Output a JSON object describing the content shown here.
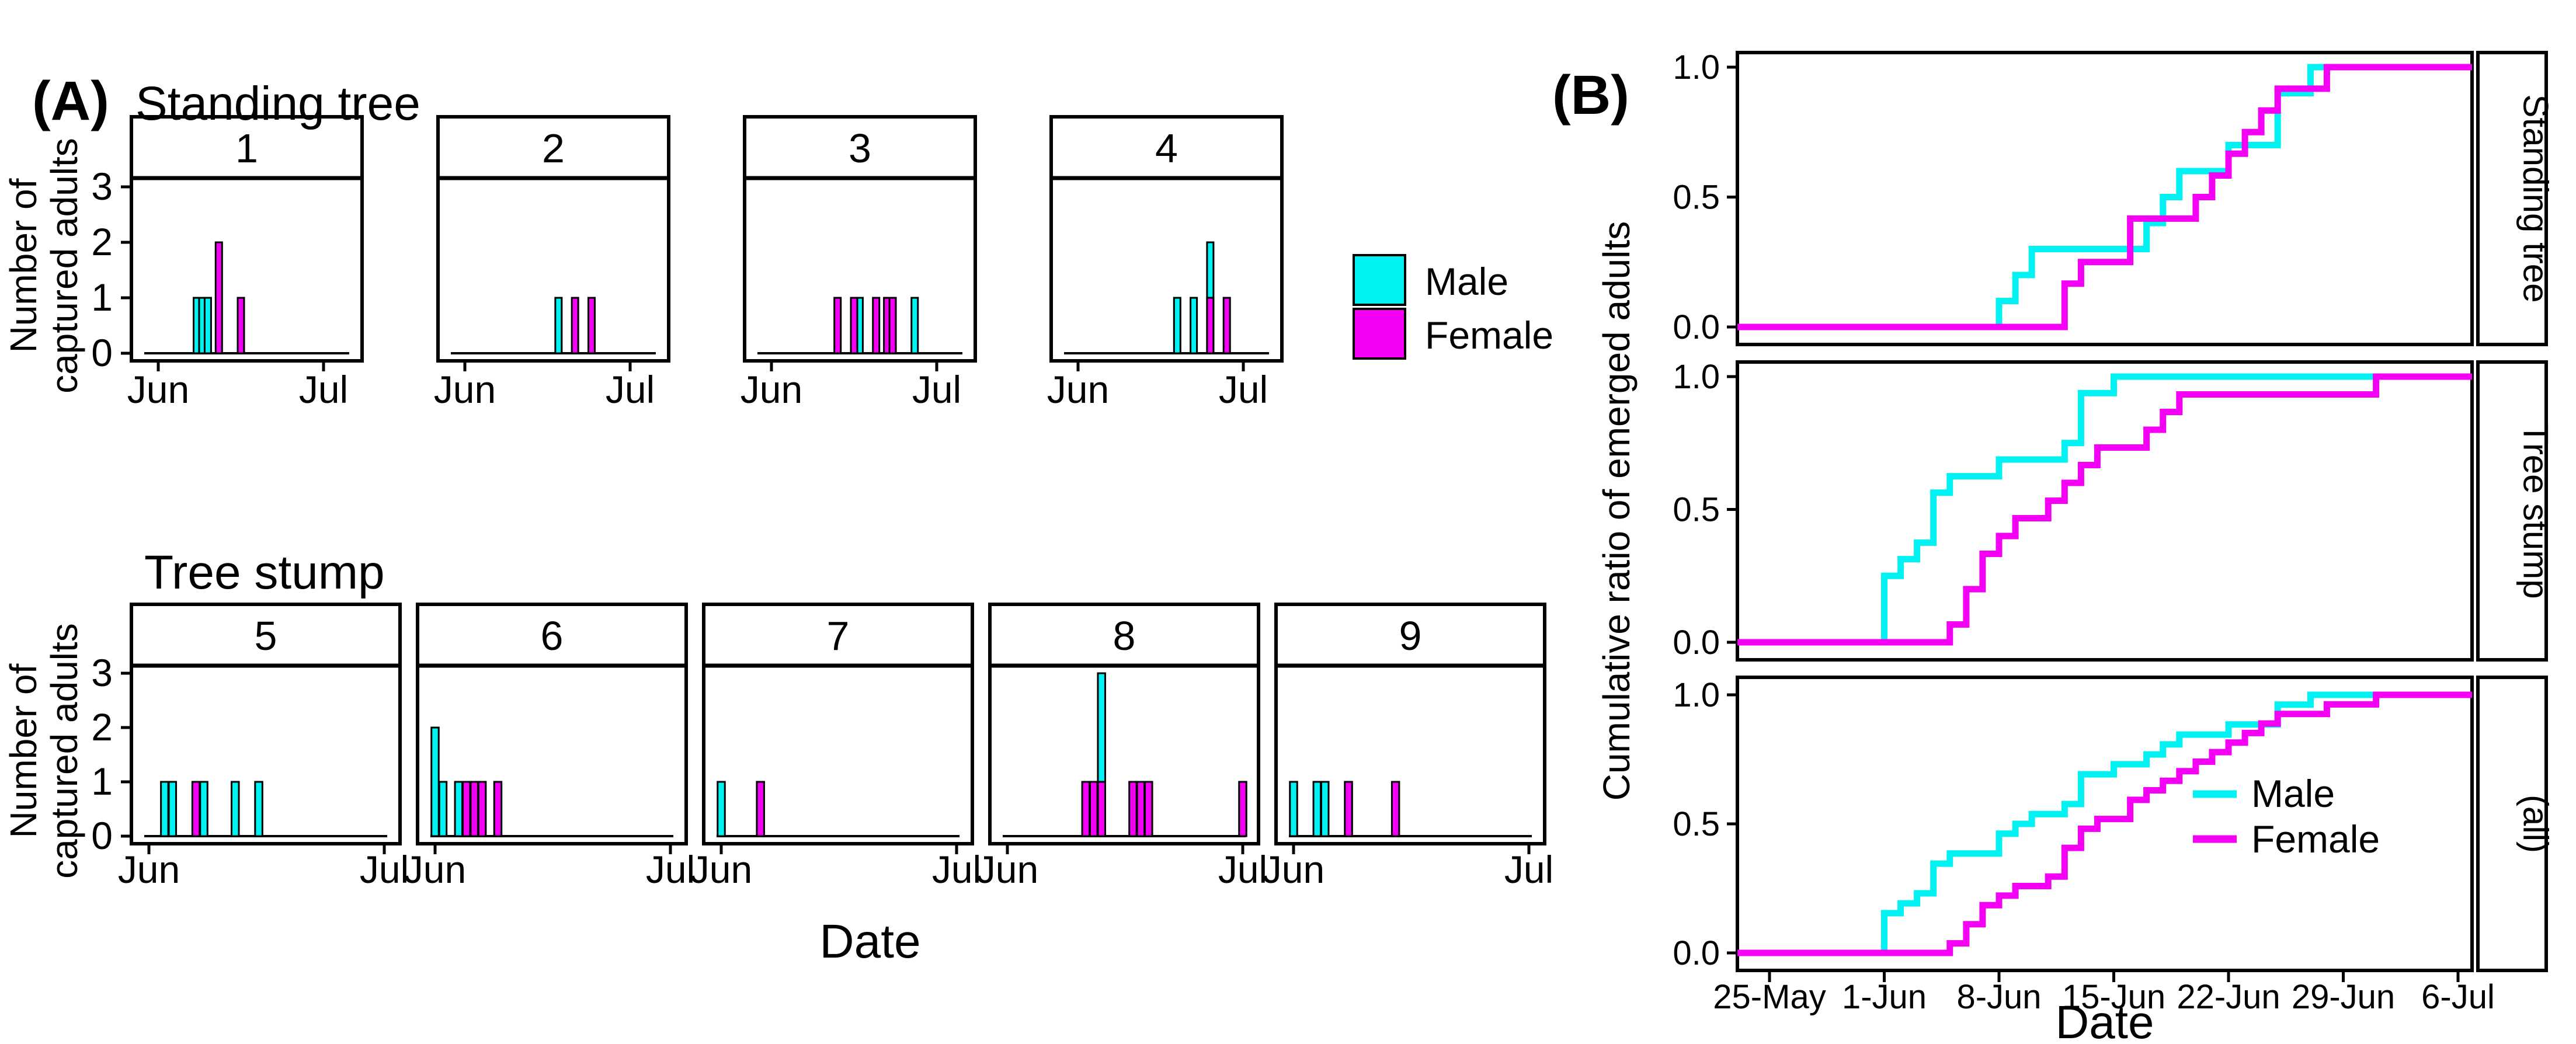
{
  "colors": {
    "male": "#00F2F2",
    "female": "#F400F4",
    "axis": "#000000",
    "background": "#FFFFFF"
  },
  "panel_a": {
    "label": "(A)",
    "group_titles": [
      "Standing tree",
      "Tree stump"
    ],
    "ylabel_line1": "Number of",
    "ylabel_line2": "captured adults",
    "xlabel": "Date",
    "x_ticks": [
      "Jun",
      "Jul"
    ],
    "y_ticks": [
      "0",
      "1",
      "2",
      "3"
    ],
    "legend": {
      "male": "Male",
      "female": "Female"
    },
    "chart_data": [
      {
        "panel": "1",
        "group": "Standing tree",
        "bars": [
          {
            "day": 8,
            "sex": "M",
            "n": 1
          },
          {
            "day": 9,
            "sex": "M",
            "n": 1
          },
          {
            "day": 10,
            "sex": "M",
            "n": 1
          },
          {
            "day": 12,
            "sex": "F",
            "n": 2
          },
          {
            "day": 16,
            "sex": "F",
            "n": 1
          }
        ]
      },
      {
        "panel": "2",
        "group": "Standing tree",
        "bars": [
          {
            "day": 18,
            "sex": "M",
            "n": 1
          },
          {
            "day": 21,
            "sex": "F",
            "n": 1
          },
          {
            "day": 24,
            "sex": "F",
            "n": 1
          }
        ]
      },
      {
        "panel": "3",
        "group": "Standing tree",
        "bars": [
          {
            "day": 13,
            "sex": "F",
            "n": 1
          },
          {
            "day": 16,
            "sex": "F",
            "n": 1
          },
          {
            "day": 17,
            "sex": "M",
            "n": 1
          },
          {
            "day": 20,
            "sex": "F",
            "n": 1
          },
          {
            "day": 22,
            "sex": "F",
            "n": 1
          },
          {
            "day": 23,
            "sex": "F",
            "n": 1
          },
          {
            "day": 27,
            "sex": "M",
            "n": 1
          }
        ]
      },
      {
        "panel": "4",
        "group": "Standing tree",
        "bars": [
          {
            "day": 19,
            "sex": "M",
            "n": 1
          },
          {
            "day": 22,
            "sex": "M",
            "n": 1
          },
          {
            "day": 25,
            "sex": "M",
            "n": 2
          },
          {
            "day": 25,
            "sex": "F",
            "n": 1
          },
          {
            "day": 28,
            "sex": "F",
            "n": 1
          }
        ]
      },
      {
        "panel": "5",
        "group": "Tree stump",
        "bars": [
          {
            "day": 3,
            "sex": "M",
            "n": 1
          },
          {
            "day": 4,
            "sex": "M",
            "n": 1
          },
          {
            "day": 7,
            "sex": "F",
            "n": 1
          },
          {
            "day": 8,
            "sex": "M",
            "n": 1
          },
          {
            "day": 12,
            "sex": "M",
            "n": 1
          },
          {
            "day": 15,
            "sex": "M",
            "n": 1
          }
        ]
      },
      {
        "panel": "6",
        "group": "Tree stump",
        "bars": [
          {
            "day": 1,
            "sex": "M",
            "n": 2
          },
          {
            "day": 2,
            "sex": "M",
            "n": 1
          },
          {
            "day": 4,
            "sex": "M",
            "n": 1
          },
          {
            "day": 5,
            "sex": "F",
            "n": 1
          },
          {
            "day": 6,
            "sex": "F",
            "n": 1
          },
          {
            "day": 7,
            "sex": "F",
            "n": 1
          },
          {
            "day": 9,
            "sex": "F",
            "n": 1
          }
        ]
      },
      {
        "panel": "7",
        "group": "Tree stump",
        "bars": [
          {
            "day": 1,
            "sex": "M",
            "n": 1
          },
          {
            "day": 6,
            "sex": "F",
            "n": 1
          }
        ]
      },
      {
        "panel": "8",
        "group": "Tree stump",
        "bars": [
          {
            "day": 11,
            "sex": "F",
            "n": 1
          },
          {
            "day": 12,
            "sex": "F",
            "n": 1
          },
          {
            "day": 13,
            "sex": "M",
            "n": 3
          },
          {
            "day": 13,
            "sex": "F",
            "n": 1
          },
          {
            "day": 17,
            "sex": "F",
            "n": 1
          },
          {
            "day": 18,
            "sex": "F",
            "n": 1
          },
          {
            "day": 19,
            "sex": "F",
            "n": 1
          },
          {
            "day": 31,
            "sex": "F",
            "n": 1
          }
        ]
      },
      {
        "panel": "9",
        "group": "Tree stump",
        "bars": [
          {
            "day": 1,
            "sex": "M",
            "n": 1
          },
          {
            "day": 4,
            "sex": "M",
            "n": 1
          },
          {
            "day": 5,
            "sex": "M",
            "n": 1
          },
          {
            "day": 8,
            "sex": "F",
            "n": 1
          },
          {
            "day": 14,
            "sex": "F",
            "n": 1
          }
        ]
      }
    ]
  },
  "panel_b": {
    "label": "(B)",
    "ylabel": "Cumulative ratio of emerged adults",
    "xlabel": "Date",
    "x_ticks": [
      "25-May",
      "1-Jun",
      "8-Jun",
      "15-Jun",
      "22-Jun",
      "29-Jun",
      "6-Jul"
    ],
    "x_tick_days": [
      -6,
      1,
      8,
      15,
      22,
      29,
      36
    ],
    "y_ticks": [
      "1.0",
      "0.5",
      "0.0"
    ],
    "legend": {
      "male": "Male",
      "female": "Female"
    },
    "chart_data": [
      {
        "facet": "Standing tree",
        "type": "line",
        "male_steps": [
          [
            8,
            0.1
          ],
          [
            9,
            0.2
          ],
          [
            10,
            0.3
          ],
          [
            17,
            0.4
          ],
          [
            18,
            0.5
          ],
          [
            19,
            0.6
          ],
          [
            22,
            0.7
          ],
          [
            25,
            0.9
          ],
          [
            27,
            1.0
          ]
        ],
        "female_steps": [
          [
            12,
            0.167
          ],
          [
            13,
            0.25
          ],
          [
            16,
            0.417
          ],
          [
            20,
            0.5
          ],
          [
            21,
            0.583
          ],
          [
            22,
            0.667
          ],
          [
            23,
            0.75
          ],
          [
            24,
            0.833
          ],
          [
            25,
            0.917
          ],
          [
            28,
            1.0
          ]
        ]
      },
      {
        "facet": "Tree stump",
        "type": "line",
        "male_steps": [
          [
            1,
            0.25
          ],
          [
            2,
            0.313
          ],
          [
            3,
            0.375
          ],
          [
            4,
            0.563
          ],
          [
            5,
            0.625
          ],
          [
            8,
            0.688
          ],
          [
            12,
            0.75
          ],
          [
            13,
            0.938
          ],
          [
            15,
            1.0
          ]
        ],
        "female_steps": [
          [
            5,
            0.067
          ],
          [
            6,
            0.2
          ],
          [
            7,
            0.333
          ],
          [
            8,
            0.4
          ],
          [
            9,
            0.467
          ],
          [
            11,
            0.533
          ],
          [
            12,
            0.6
          ],
          [
            13,
            0.667
          ],
          [
            14,
            0.733
          ],
          [
            17,
            0.8
          ],
          [
            18,
            0.867
          ],
          [
            19,
            0.933
          ],
          [
            31,
            1.0
          ]
        ]
      },
      {
        "facet": "(all)",
        "type": "line",
        "male_steps": [
          [
            1,
            0.154
          ],
          [
            2,
            0.192
          ],
          [
            3,
            0.231
          ],
          [
            4,
            0.346
          ],
          [
            5,
            0.385
          ],
          [
            8,
            0.462
          ],
          [
            9,
            0.5
          ],
          [
            10,
            0.538
          ],
          [
            12,
            0.577
          ],
          [
            13,
            0.692
          ],
          [
            15,
            0.731
          ],
          [
            17,
            0.769
          ],
          [
            18,
            0.808
          ],
          [
            19,
            0.846
          ],
          [
            22,
            0.885
          ],
          [
            25,
            0.962
          ],
          [
            27,
            1.0
          ]
        ],
        "female_steps": [
          [
            5,
            0.037
          ],
          [
            6,
            0.111
          ],
          [
            7,
            0.185
          ],
          [
            8,
            0.222
          ],
          [
            9,
            0.259
          ],
          [
            11,
            0.296
          ],
          [
            12,
            0.407
          ],
          [
            13,
            0.481
          ],
          [
            14,
            0.519
          ],
          [
            16,
            0.593
          ],
          [
            17,
            0.63
          ],
          [
            18,
            0.667
          ],
          [
            19,
            0.704
          ],
          [
            20,
            0.741
          ],
          [
            21,
            0.778
          ],
          [
            22,
            0.815
          ],
          [
            23,
            0.852
          ],
          [
            24,
            0.889
          ],
          [
            25,
            0.926
          ],
          [
            28,
            0.963
          ],
          [
            31,
            1.0
          ]
        ]
      }
    ]
  }
}
